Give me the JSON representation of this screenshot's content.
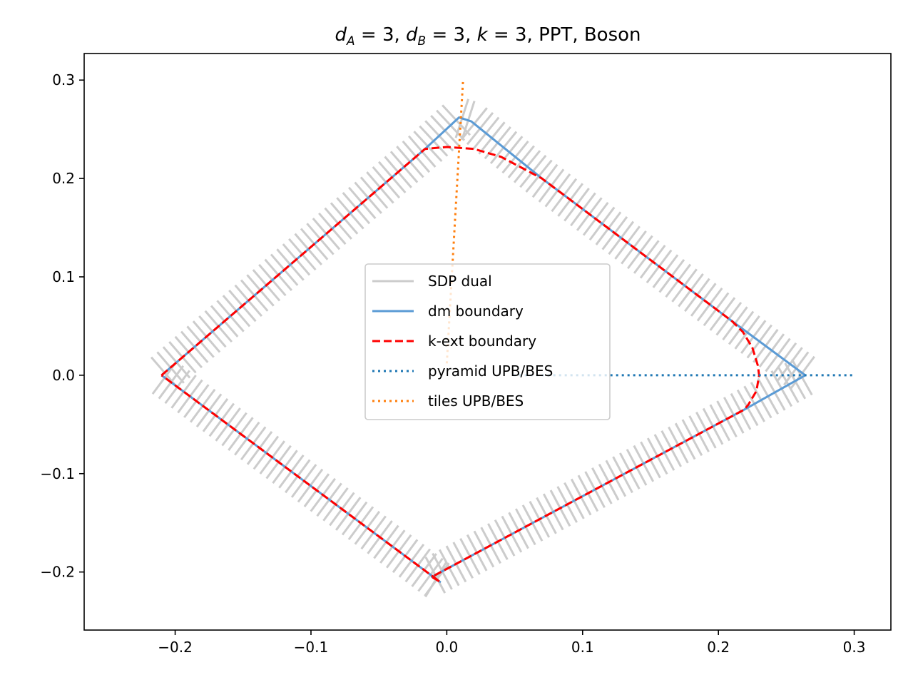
{
  "chart_data": {
    "type": "line",
    "title": "d_A = 3, d_B = 3, k = 3, PPT, Boson",
    "title_parts": {
      "dA_sym": "d",
      "dA_sub": "A",
      "dA_val": "3",
      "dB_sym": "d",
      "dB_sub": "B",
      "dB_val": "3",
      "k_sym": "k",
      "k_val": "3",
      "rest": ", PPT, Boson"
    },
    "xlabel": "",
    "ylabel": "",
    "xlim": [
      -0.267,
      0.327
    ],
    "ylim": [
      -0.259,
      0.327
    ],
    "x_ticks": [
      -0.2,
      -0.1,
      0.0,
      0.1,
      0.2,
      0.3
    ],
    "x_tick_labels": [
      "−0.2",
      "−0.1",
      "0.0",
      "0.1",
      "0.2",
      "0.3"
    ],
    "y_ticks": [
      0.3,
      0.2,
      0.1,
      0.0,
      -0.1,
      -0.2
    ],
    "y_tick_labels": [
      "0.3",
      "0.2",
      "0.1",
      "0.0",
      "−0.1",
      "−0.2"
    ],
    "grid": false,
    "legend_position": "center",
    "series": [
      {
        "name": "SDP dual",
        "color": "#cccccc",
        "style": "solid",
        "kind": "normal-segments",
        "segment_length": 0.03
      },
      {
        "name": "dm boundary",
        "color": "#5b9bd5",
        "style": "solid",
        "points": [
          [
            -0.21,
            0.0
          ],
          [
            -0.016,
            0.23
          ],
          [
            0.009,
            0.262
          ],
          [
            0.018,
            0.258
          ],
          [
            0.07,
            0.2
          ],
          [
            0.21,
            0.055
          ],
          [
            0.264,
            0.0
          ],
          [
            0.219,
            -0.035
          ],
          [
            -0.011,
            -0.205
          ],
          [
            -0.005,
            -0.21
          ],
          [
            -0.21,
            0.0
          ]
        ]
      },
      {
        "name": "k-ext boundary",
        "color": "#ff0000",
        "style": "dashed",
        "points": [
          [
            -0.21,
            0.0
          ],
          [
            -0.016,
            0.23
          ],
          [
            0.0,
            0.232
          ],
          [
            0.02,
            0.23
          ],
          [
            0.04,
            0.222
          ],
          [
            0.07,
            0.2
          ],
          [
            0.21,
            0.055
          ],
          [
            0.218,
            0.044
          ],
          [
            0.225,
            0.028
          ],
          [
            0.229,
            0.01
          ],
          [
            0.23,
            0.0
          ],
          [
            0.228,
            -0.016
          ],
          [
            0.222,
            -0.03
          ],
          [
            0.219,
            -0.035
          ],
          [
            -0.011,
            -0.205
          ],
          [
            -0.005,
            -0.21
          ],
          [
            -0.21,
            0.0
          ]
        ]
      },
      {
        "name": "pyramid UPB/BES",
        "color": "#1f77b4",
        "style": "dotted",
        "points": [
          [
            0.049,
            0.0
          ],
          [
            0.3,
            0.0
          ]
        ]
      },
      {
        "name": "tiles UPB/BES",
        "color": "#ff7f0e",
        "style": "dotted",
        "points": [
          [
            0.0,
            0.012
          ],
          [
            0.012,
            0.3
          ]
        ]
      }
    ]
  }
}
